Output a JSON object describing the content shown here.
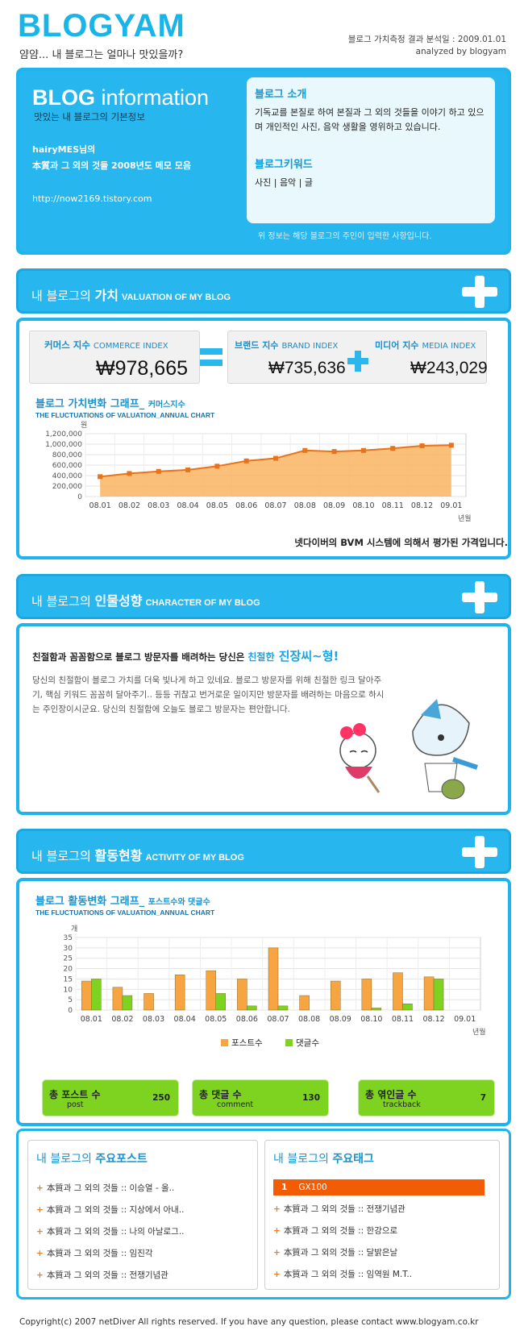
{
  "header": {
    "logo": "BLOGYAM",
    "tagline": "얌얌...  내 블로그는 얼마나 맛있을까?",
    "date_line": "블로그 가치측정 결과 분석일 : 2009.01.01",
    "analyzed_by": "analyzed by blogyam"
  },
  "info": {
    "title_bold": "BLOG",
    "title_rest": " information",
    "subtitle": "맛있는 내 블로그의 기본정보",
    "owner": "hairyMES님의",
    "blog_name": "本質과 그 외의 것들 2008년도 메모 모음",
    "url": "http://now2169.tistory.com",
    "intro_title": "블로그 소개",
    "intro_text": "기독교를 본질로 하여 본질과 그 외의 것들을 이야기 하고 있으며 개인적인 사진, 음악 생활을 영위하고 있습니다.",
    "keyword_title": "블로그키워드",
    "keywords": "사진 | 음악 | 글",
    "note": "위 정보는 해당 블로그의 주인이 입력한 사항입니다."
  },
  "valuation": {
    "bar_prefix": "내 블로그의 ",
    "bar_bold": "가치",
    "bar_en": "VALUATION OF MY BLOG",
    "commerce_label": "커머스 지수",
    "commerce_en": "COMMERCE INDEX",
    "commerce_value": "₩978,665",
    "brand_label": "브랜드 지수",
    "brand_en": "BRAND INDEX",
    "brand_value": "₩735,636",
    "media_label": "미디어 지수",
    "media_en": "MEDIA INDEX",
    "media_value": "₩243,029",
    "graph_title": "블로그 가치변화 그래프_",
    "graph_title_small": "커머스지수",
    "graph_sub": "THE FLUCTUATIONS OF VALUATION_ANNUAL CHART",
    "footer_note": "넷다이버의 BVM 시스템에 의해서 평가된 가격입니다."
  },
  "character": {
    "bar_prefix": "내 블로그의 ",
    "bar_bold": "인물성향",
    "bar_en": "CHARACTER OF MY BLOG",
    "headline_pre": "친절함과 꼼꼼함으로 블로그 방문자를 배려하는 당신은 ",
    "headline_em": "친절한",
    "headline_strong": " 진장씨~형!",
    "body": "당신의 친절함이 블로그 가치를 더욱 빛나게 하고 있네요. 블로그 방문자를 위해 친절한 링크 달아주기, 핵심 키워드 꼼꼼히 달아주기.. 등등 귀찮고 번거로운 일이지만 방문자를 배려하는 마음으로 하시는 주인장이시군요. 당신의 친절함에 오늘도 블로그 방문자는 편안합니다."
  },
  "activity": {
    "bar_prefix": "내 블로그의 ",
    "bar_bold": "활동현황",
    "bar_en": "ACTIVITY OF MY BLOG",
    "graph_title": "블로그 활동변화 그래프_",
    "graph_title_small": "포스트수와 댓글수",
    "graph_sub": "THE FLUCTUATIONS OF VALUATION_ANNUAL CHART",
    "stats": [
      {
        "label": "총 포스트 수",
        "sub": "post",
        "value": "250"
      },
      {
        "label": "총 댓글 수",
        "sub": "comment",
        "value": "130"
      },
      {
        "label": "총 엮인글 수",
        "sub": "trackback",
        "value": "7"
      }
    ]
  },
  "posts": {
    "title_pre": "내 블로그의 ",
    "title_bold": "주요포스트",
    "items": [
      "本質과 그 외의 것들 :: 이승열 - 올..",
      "本質과 그 외의 것들 :: 지상에서 아내..",
      "本質과 그 외의 것들 :: 나의 아날로그..",
      "本質과 그 외의 것들 :: 임진각",
      "本質과 그 외의 것들 :: 전쟁기념관"
    ]
  },
  "tags": {
    "title_pre": "내 블로그의 ",
    "title_bold": "주요태그",
    "top_rank": "1",
    "top_tag": "GX100",
    "items": [
      "本質과 그 외의 것들 :: 전쟁기념관",
      "本質과 그 외의 것들 :: 한강으로",
      "本質과 그 외의 것들 :: 달밝은날",
      "本質과 그 외의 것들 :: 임역원 M.T.."
    ]
  },
  "footer": {
    "copyright": "Copyright(c) 2007 netDiver All rights reserved. If you have any question, please contact www.blogyam.co.kr"
  },
  "colors": {
    "accent": "#27b6ee",
    "orange": "#f7a540",
    "green": "#7ed321"
  },
  "chart_data": [
    {
      "type": "area",
      "title": "블로그 가치변화 그래프_ 커머스지수",
      "ylabel": "원",
      "xlabel": "년월",
      "categories": [
        "08.01",
        "08.02",
        "08.03",
        "08.04",
        "08.05",
        "08.06",
        "08.07",
        "08.08",
        "08.09",
        "08.10",
        "08.11",
        "08.12",
        "09.01"
      ],
      "values": [
        380000,
        440000,
        480000,
        510000,
        580000,
        680000,
        730000,
        880000,
        860000,
        880000,
        920000,
        970000,
        980000
      ],
      "ylim": [
        0,
        1200000
      ],
      "yticks": [
        "0",
        "200,000",
        "400,000",
        "600,000",
        "800,000",
        "1,000,000",
        "1,200,000"
      ],
      "grid": true
    },
    {
      "type": "bar",
      "title": "블로그 활동변화 그래프_ 포스트수와 댓글수",
      "ylabel": "개",
      "xlabel": "년월",
      "categories": [
        "08.01",
        "08.02",
        "08.03",
        "08.04",
        "08.05",
        "08.06",
        "08.07",
        "08.08",
        "08.09",
        "08.10",
        "08.11",
        "08.12",
        "09.01"
      ],
      "ylim": [
        0,
        35
      ],
      "yticks": [
        "0",
        "5",
        "10",
        "15",
        "20",
        "25",
        "30",
        "35"
      ],
      "series": [
        {
          "name": "포스트수",
          "values": [
            14,
            11,
            8,
            17,
            19,
            15,
            30,
            7,
            14,
            15,
            18,
            16,
            0
          ]
        },
        {
          "name": "댓글수",
          "values": [
            15,
            7,
            0,
            0,
            8,
            2,
            2,
            0,
            0,
            1,
            3,
            15,
            0
          ]
        }
      ],
      "legend": "bottom",
      "grid": true
    }
  ]
}
